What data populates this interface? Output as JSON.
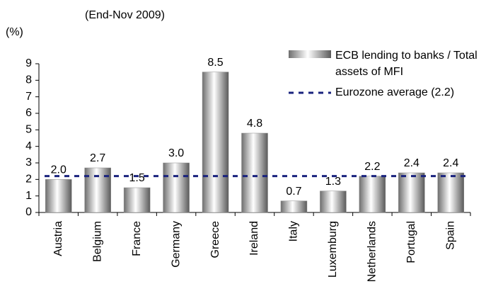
{
  "chart_data": {
    "type": "bar",
    "subtitle": "(End-Nov 2009)",
    "y_label": "(%)",
    "categories": [
      "Austria",
      "Belgium",
      "France",
      "Germany",
      "Greece",
      "Ireland",
      "Italy",
      "Luxemburg",
      "Netherlands",
      "Portugal",
      "Spain"
    ],
    "series": [
      {
        "name": "ECB lending to banks / Total assets of MFI",
        "color": "#8c8c8c",
        "values": [
          2.0,
          2.7,
          1.5,
          3.0,
          8.5,
          4.8,
          0.7,
          1.3,
          2.2,
          2.4,
          2.4
        ],
        "value_labels": [
          "2.0",
          "2.7",
          "1.5",
          "3.0",
          "8.5",
          "4.8",
          "0.7",
          "1.3",
          "2.2",
          "2.4",
          "2.4"
        ]
      }
    ],
    "reference_line": {
      "name": "Eurozone average (2.2)",
      "value": 2.2,
      "color": "#1a237e"
    },
    "ylim": [
      0,
      9
    ],
    "yticks": [
      0,
      1,
      2,
      3,
      4,
      5,
      6,
      7,
      8,
      9
    ]
  }
}
